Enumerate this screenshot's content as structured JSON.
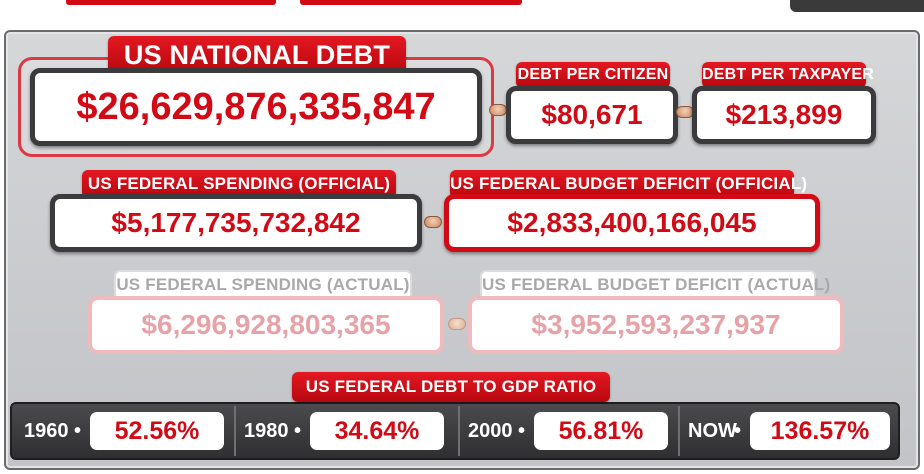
{
  "national_debt": {
    "label": "US NATIONAL DEBT",
    "value": "$26,629,876,335,847"
  },
  "debt_per_citizen": {
    "label": "DEBT PER CITIZEN",
    "value": "$80,671"
  },
  "debt_per_taxpayer": {
    "label": "DEBT PER TAXPAYER",
    "value": "$213,899"
  },
  "spending_official": {
    "label": "US FEDERAL SPENDING (OFFICIAL)",
    "value": "$5,177,735,732,842"
  },
  "deficit_official": {
    "label": "US FEDERAL BUDGET DEFICIT (OFFICIAL)",
    "value": "$2,833,400,166,045"
  },
  "spending_actual": {
    "label": "US FEDERAL SPENDING (ACTUAL)",
    "value": "$6,296,928,803,365"
  },
  "deficit_actual": {
    "label": "US FEDERAL BUDGET DEFICIT (ACTUAL)",
    "value": "$3,952,593,237,937"
  },
  "debt_to_gdp": {
    "label": "US FEDERAL DEBT TO GDP RATIO",
    "items": [
      {
        "year": "1960",
        "value": "52.56%"
      },
      {
        "year": "1980",
        "value": "34.64%"
      },
      {
        "year": "2000",
        "value": "56.81%"
      },
      {
        "year": "NOW",
        "value": "136.57%"
      }
    ]
  },
  "colors": {
    "accent_red": "#d10a16",
    "panel_gray": "#cfd0d3",
    "frame_dark": "#3b3b3d",
    "faded_text": "#e7a2a8"
  }
}
